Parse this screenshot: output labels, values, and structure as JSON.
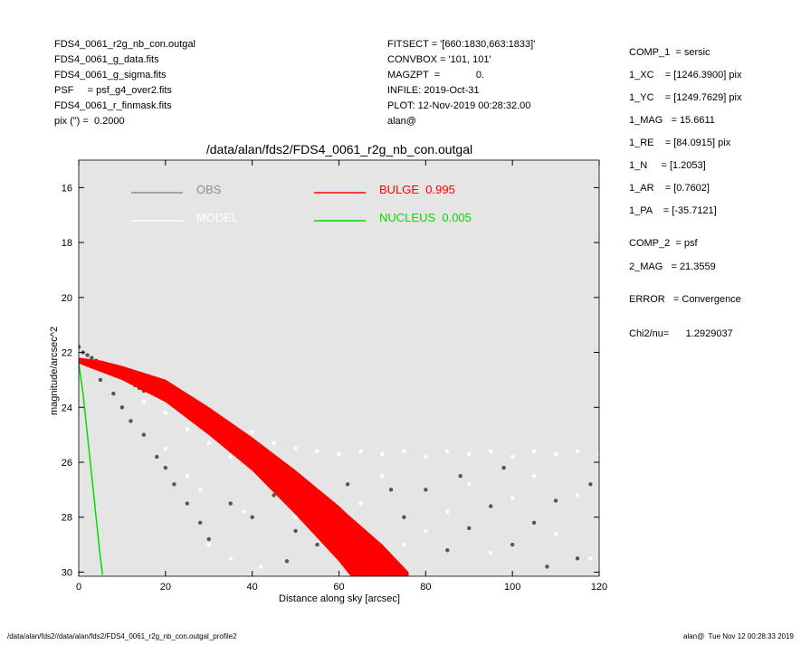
{
  "header": {
    "left": [
      "FDS4_0061_r2g_nb_con.outgal",
      "FDS4_0061_g_data.fits",
      "FDS4_0061_g_sigma.fits",
      "PSF     = psf_g4_over2.fits",
      "FDS4_0061_r_finmask.fits",
      "pix (\") =  0.2000"
    ],
    "middle": [
      "FITSECT = '[660:1830,663:1833]'",
      "CONVBOX = '101, 101'",
      "MAGZPT  =             0.",
      "INFILE: 2019-Oct-31",
      "PLOT: 12-Nov-2019 00:28:32.00",
      "alan@"
    ],
    "right": [
      "COMP_1  = sersic",
      "1_XC    = [1246.3900] pix",
      "1_YC    = [1249.7629] pix",
      "1_MAG   = 15.6611",
      "1_RE    = [84.0915] pix",
      "1_N     = [1.2053]",
      "1_AR    = [0.7602]",
      "1_PA    = [-35.7121]",
      "COMP_2  = psf",
      "2_MAG   = 21.3559",
      "ERROR   = Convergence",
      "Chi2/nu=      1.2929037"
    ]
  },
  "footer": {
    "left": "/data/alan/fds2//data/alan/fds2/FDS4_0061_r2g_nb_con.outgal_profile2",
    "right": "alan@  Tue Nov 12 00:28:33 2019"
  },
  "chart_data": {
    "type": "scatter",
    "title": "/data/alan/fds2/FDS4_0061_r2g_nb_con.outgal",
    "x_label": "Distance along sky [arcsec]",
    "y_label": "magnitude/arcsec^2",
    "xlim": [
      0,
      120
    ],
    "xticks": [
      0,
      20,
      40,
      60,
      80,
      100,
      120
    ],
    "ylim": [
      15,
      30.15
    ],
    "yticks": [
      16,
      18,
      20,
      22,
      24,
      26,
      28,
      30
    ],
    "y_inverted": true,
    "background": "#e5e5e5",
    "series": [
      {
        "name": "OBS",
        "color": "#555555",
        "legend_color": "#8c8c8c",
        "type": "scatter",
        "x": [
          0,
          1,
          2,
          3,
          4,
          5,
          6,
          7,
          8,
          9,
          10,
          11,
          12,
          13,
          14,
          15,
          5,
          8,
          10,
          12,
          15,
          18,
          20,
          22,
          25,
          28,
          30,
          35,
          40,
          45,
          50,
          55,
          60,
          65,
          70,
          75,
          80,
          85,
          90,
          95,
          100,
          105,
          110,
          115,
          118,
          88,
          98,
          72,
          48,
          62,
          108
        ],
        "values": [
          21.8,
          22.0,
          22.1,
          22.2,
          22.3,
          22.4,
          22.5,
          22.6,
          22.7,
          22.8,
          22.9,
          23.0,
          23.1,
          23.2,
          23.3,
          23.4,
          23.0,
          23.5,
          24.0,
          24.5,
          25.0,
          25.8,
          26.2,
          26.8,
          27.5,
          28.2,
          28.8,
          27.5,
          28.0,
          27.2,
          28.5,
          29.0,
          27.8,
          28.8,
          29.5,
          28.0,
          27.0,
          29.2,
          28.4,
          27.6,
          29.0,
          28.2,
          27.4,
          29.5,
          26.8,
          26.5,
          26.2,
          27.0,
          29.6,
          26.8,
          29.8
        ]
      },
      {
        "name": "MODEL",
        "color": "#ffffff",
        "legend_color": "#ffffff",
        "type": "scatter",
        "x": [
          15,
          20,
          25,
          30,
          35,
          40,
          45,
          50,
          55,
          60,
          65,
          70,
          75,
          80,
          85,
          90,
          95,
          100,
          105,
          110,
          115,
          120,
          45,
          50,
          55,
          60,
          65,
          70,
          75,
          80,
          85,
          90,
          95,
          100,
          105,
          110,
          115,
          118,
          28,
          30,
          35,
          38,
          42,
          20,
          25
        ],
        "values": [
          23.8,
          24.2,
          24.8,
          25.3,
          25.8,
          24.9,
          25.3,
          25.5,
          25.6,
          25.7,
          25.6,
          25.7,
          25.6,
          25.8,
          25.6,
          25.7,
          25.6,
          25.8,
          25.6,
          25.7,
          25.6,
          25.7,
          27.0,
          28.0,
          27.0,
          29.0,
          27.5,
          26.5,
          29.0,
          28.5,
          27.8,
          26.8,
          29.3,
          27.3,
          26.5,
          28.6,
          27.2,
          29.5,
          27.0,
          29.0,
          29.5,
          27.8,
          29.8,
          25.5,
          26.5
        ]
      },
      {
        "name": "BULGE  0.995",
        "color": "#ff0000",
        "legend_color": "#ff0000",
        "type": "band",
        "x": [
          0,
          5,
          10,
          20,
          30,
          40,
          50,
          60,
          62,
          70,
          76
        ],
        "values": [
          22.2,
          22.3,
          22.5,
          23.0,
          24.0,
          25.1,
          26.3,
          27.6,
          27.9,
          29.0,
          30.0
        ],
        "values2": [
          22.4,
          22.7,
          23.0,
          23.8,
          25.0,
          26.3,
          27.9,
          29.6,
          30.0,
          31.5,
          32.5
        ]
      },
      {
        "name": "NUCLEUS  0.005",
        "color": "#00dd00",
        "legend_color": "#00dd00",
        "type": "line",
        "x": [
          0,
          1,
          2,
          3,
          4,
          5,
          5.5
        ],
        "values": [
          22.4,
          23.5,
          25.0,
          26.5,
          28.0,
          29.5,
          30.1
        ]
      }
    ]
  }
}
